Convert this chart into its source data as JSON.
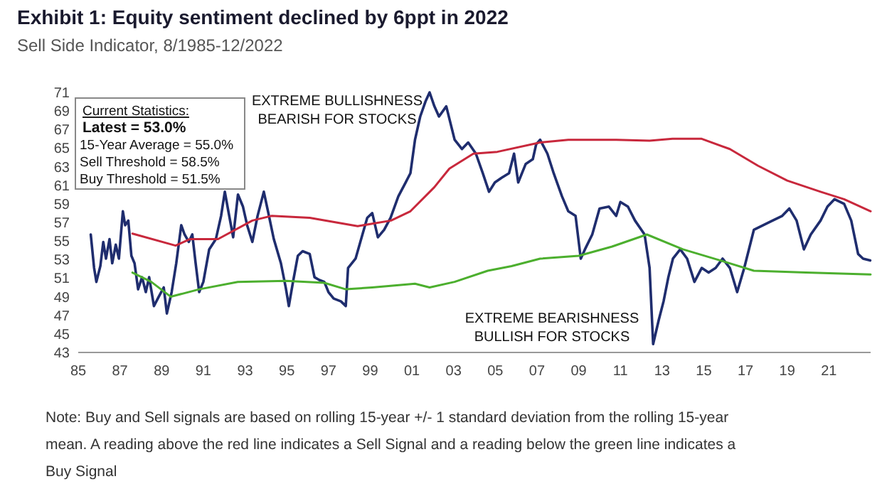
{
  "chart_data": {
    "type": "line",
    "title": "Exhibit 1: Equity sentiment declined by 6ppt in 2022",
    "subtitle": "Sell Side Indicator, 8/1985-12/2022",
    "xlim": [
      1985,
      2023
    ],
    "xticks": [
      {
        "value": 1985,
        "label": "85"
      },
      {
        "value": 1987,
        "label": "87"
      },
      {
        "value": 1989,
        "label": "89"
      },
      {
        "value": 1991,
        "label": "91"
      },
      {
        "value": 1993,
        "label": "93"
      },
      {
        "value": 1995,
        "label": "95"
      },
      {
        "value": 1997,
        "label": "97"
      },
      {
        "value": 1999,
        "label": "99"
      },
      {
        "value": 2001,
        "label": "01"
      },
      {
        "value": 2003,
        "label": "03"
      },
      {
        "value": 2005,
        "label": "05"
      },
      {
        "value": 2007,
        "label": "07"
      },
      {
        "value": 2009,
        "label": "09"
      },
      {
        "value": 2011,
        "label": "11"
      },
      {
        "value": 2013,
        "label": "13"
      },
      {
        "value": 2015,
        "label": "15"
      },
      {
        "value": 2017,
        "label": "17"
      },
      {
        "value": 2019,
        "label": "19"
      },
      {
        "value": 2021,
        "label": "21"
      }
    ],
    "ylim": [
      43,
      71
    ],
    "yticks": [
      43,
      45,
      47,
      49,
      51,
      53,
      55,
      57,
      59,
      61,
      63,
      65,
      67,
      69,
      71
    ],
    "grid": false,
    "marker": "none",
    "line_style": "solid",
    "series": [
      {
        "color": "#1f2d6e",
        "x": [
          1985.6,
          1985.76,
          1985.87,
          1986.06,
          1986.2,
          1986.33,
          1986.5,
          1986.63,
          1986.8,
          1986.95,
          1987.14,
          1987.25,
          1987.4,
          1987.55,
          1987.7,
          1987.87,
          1988.06,
          1988.24,
          1988.4,
          1988.63,
          1988.86,
          1989.1,
          1989.25,
          1989.48,
          1989.7,
          1989.94,
          1990.1,
          1990.3,
          1990.47,
          1990.63,
          1990.8,
          1991.0,
          1991.28,
          1991.6,
          1991.85,
          1992.03,
          1992.2,
          1992.43,
          1992.66,
          1992.9,
          1993.1,
          1993.35,
          1993.6,
          1993.9,
          1994.1,
          1994.38,
          1994.72,
          1994.95,
          1995.1,
          1995.3,
          1995.53,
          1995.76,
          1996.1,
          1996.33,
          1996.56,
          1996.8,
          1997.0,
          1997.25,
          1997.6,
          1997.83,
          1997.94,
          1998.3,
          1998.63,
          1998.86,
          1999.1,
          1999.37,
          1999.67,
          1999.98,
          2000.35,
          2000.7,
          2000.93,
          2001.15,
          2001.4,
          2001.65,
          2001.85,
          2002.08,
          2002.3,
          2002.65,
          2003.05,
          2003.4,
          2003.7,
          2004.07,
          2004.4,
          2004.7,
          2004.98,
          2005.3,
          2005.66,
          2005.9,
          2006.1,
          2006.46,
          2006.8,
          2006.96,
          2007.15,
          2007.5,
          2007.8,
          2008.2,
          2008.5,
          2008.85,
          2009.1,
          2009.3,
          2009.65,
          2010.0,
          2010.45,
          2010.8,
          2011.0,
          2011.36,
          2011.7,
          2012.16,
          2012.4,
          2012.57,
          2012.84,
          2013.07,
          2013.3,
          2013.52,
          2013.87,
          2014.2,
          2014.55,
          2014.9,
          2015.23,
          2015.57,
          2015.9,
          2016.25,
          2016.6,
          2016.94,
          2017.4,
          2017.85,
          2018.3,
          2018.76,
          2019.1,
          2019.45,
          2019.8,
          2020.13,
          2020.6,
          2020.93,
          2021.27,
          2021.73,
          2022.07,
          2022.4,
          2022.64,
          2022.98
        ],
        "values": [
          55.7,
          52.1,
          50.6,
          52.3,
          54.9,
          53.1,
          55.2,
          52.6,
          54.6,
          53.1,
          58.2,
          56.7,
          57.2,
          53.4,
          52.6,
          49.8,
          51.1,
          49.5,
          51.1,
          48.0,
          49.0,
          50.0,
          47.2,
          49.5,
          52.6,
          56.7,
          55.7,
          54.9,
          55.7,
          52.6,
          49.5,
          50.6,
          54.1,
          55.2,
          57.7,
          60.3,
          58.2,
          55.4,
          60.0,
          58.7,
          56.7,
          54.9,
          57.7,
          60.3,
          58.2,
          55.2,
          52.6,
          50.0,
          48.0,
          50.6,
          53.4,
          53.9,
          53.6,
          51.1,
          50.8,
          50.6,
          49.5,
          48.8,
          48.5,
          48.0,
          52.1,
          53.1,
          55.7,
          57.5,
          58.0,
          55.4,
          56.2,
          57.5,
          59.8,
          61.3,
          62.3,
          65.9,
          68.4,
          70.0,
          71.0,
          69.5,
          68.4,
          69.5,
          65.9,
          64.9,
          65.6,
          64.4,
          62.3,
          60.3,
          61.3,
          61.8,
          62.3,
          64.4,
          61.3,
          63.3,
          63.8,
          65.4,
          65.9,
          64.4,
          62.3,
          59.8,
          58.2,
          57.7,
          53.1,
          54.1,
          55.7,
          58.5,
          58.7,
          57.7,
          59.2,
          58.7,
          57.2,
          55.7,
          52.1,
          43.9,
          46.5,
          48.5,
          51.1,
          53.1,
          54.1,
          53.1,
          50.6,
          52.1,
          51.6,
          52.1,
          53.1,
          52.1,
          49.5,
          52.1,
          56.2,
          56.7,
          57.2,
          57.7,
          58.5,
          57.2,
          54.1,
          55.7,
          57.2,
          58.7,
          59.5,
          59.0,
          57.2,
          53.6,
          53.1,
          52.9
        ]
      },
      {
        "color": "#c8283c",
        "x": [
          1987.6,
          1989.67,
          1990.35,
          1991.7,
          1993.35,
          1994.26,
          1996.1,
          1998.4,
          2000.0,
          2000.93,
          2002.08,
          2002.8,
          2003.95,
          2005.1,
          2007.15,
          2008.5,
          2010.8,
          2012.4,
          2013.5,
          2014.9,
          2016.25,
          2017.6,
          2019.0,
          2020.6,
          2021.73,
          2023.0
        ],
        "values": [
          55.8,
          54.5,
          55.2,
          55.2,
          57.2,
          57.7,
          57.5,
          56.6,
          57.2,
          58.2,
          60.8,
          62.8,
          64.4,
          64.6,
          65.6,
          65.9,
          65.9,
          65.8,
          66.0,
          66.0,
          64.9,
          63.1,
          61.5,
          60.3,
          59.5,
          58.2
        ]
      },
      {
        "color": "#4caf2e",
        "x": [
          1987.6,
          1988.5,
          1989.44,
          1990.8,
          1992.65,
          1994.95,
          1996.8,
          1997.83,
          1999.1,
          2001.15,
          2001.85,
          2003.05,
          2004.64,
          2005.78,
          2007.15,
          2009.0,
          2010.6,
          2012.27,
          2014.0,
          2015.8,
          2017.4,
          2019.9,
          2023.0
        ],
        "values": [
          51.6,
          50.6,
          49.0,
          49.8,
          50.6,
          50.7,
          50.5,
          49.8,
          50.0,
          50.4,
          50.0,
          50.6,
          51.8,
          52.3,
          53.1,
          53.4,
          54.4,
          55.7,
          54.1,
          52.9,
          51.8,
          51.6,
          51.4
        ]
      }
    ],
    "annotations": [
      "Current Statistics:\nLatest = 53.0%\n15-Year Average = 55.0%\nSell Threshold = 58.5%\nBuy Threshold = 51.5%",
      "EXTREME BULLISHNESS\nBEARISH FOR STOCKS",
      "EXTREME BEARISHNESS\nBULLISH FOR STOCKS",
      "Note: Buy and Sell signals are based on rolling 15-year +/- 1 standard deviation from the rolling 15-year mean. A reading above the red line indicates a Sell Signal and a reading below the green line indicates a Buy Signal"
    ]
  }
}
